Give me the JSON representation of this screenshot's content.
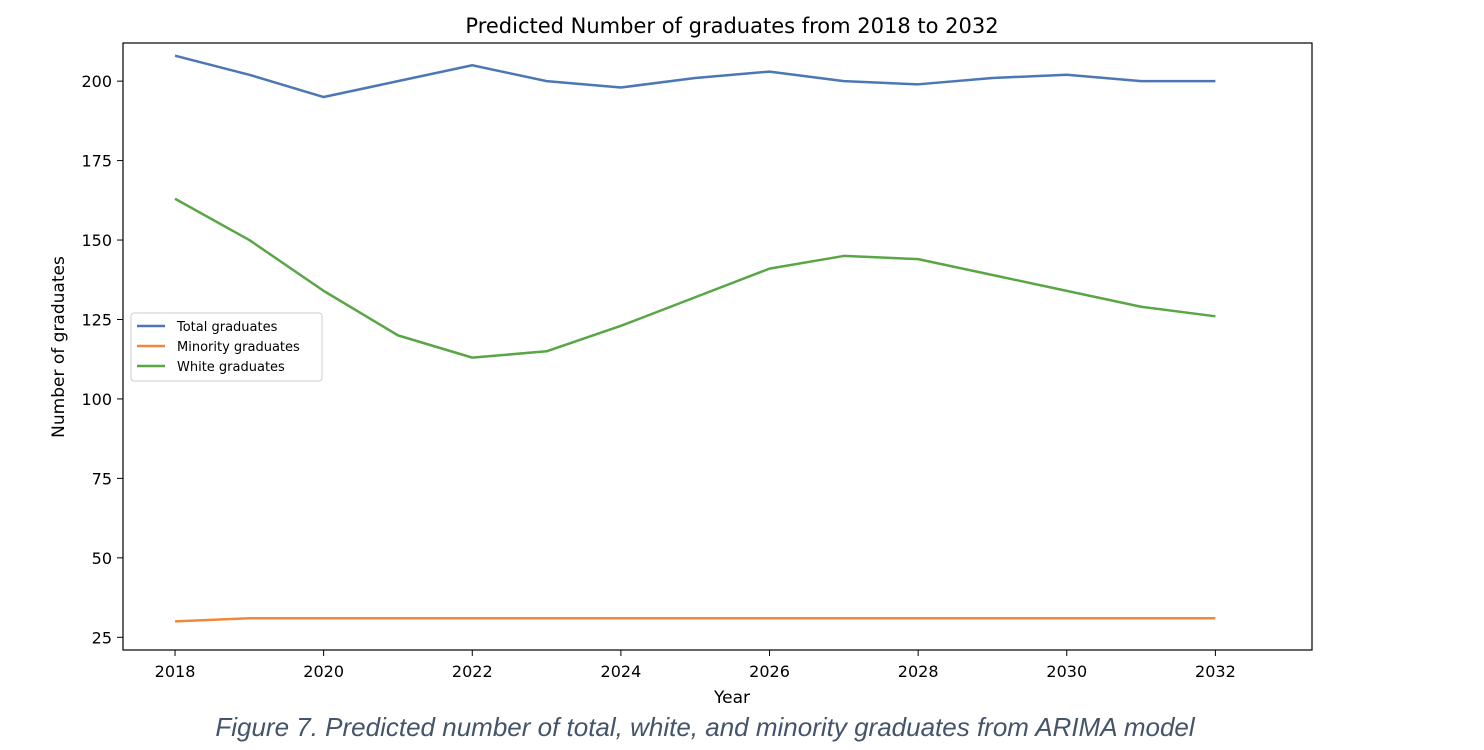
{
  "caption": "Figure 7. Predicted number of total, white, and minority graduates from ARIMA model",
  "chart_data": {
    "type": "line",
    "title": "Predicted Number of graduates from 2018 to 2032",
    "xlabel": "Year",
    "ylabel": "Number of graduates",
    "xlim": [
      2017.3,
      2033.3
    ],
    "ylim": [
      21,
      212
    ],
    "xticks": [
      2018,
      2020,
      2022,
      2024,
      2026,
      2028,
      2030,
      2032
    ],
    "yticks": [
      25,
      50,
      75,
      100,
      125,
      150,
      175,
      200
    ],
    "grid": false,
    "legend_position": "center-left",
    "x": [
      2018,
      2019,
      2020,
      2021,
      2022,
      2023,
      2024,
      2025,
      2026,
      2027,
      2028,
      2029,
      2030,
      2031,
      2032
    ],
    "series": [
      {
        "name": "Total graduates",
        "color": "#4c77b5",
        "values": [
          208,
          202,
          195,
          200,
          205,
          200,
          198,
          201,
          203,
          200,
          199,
          201,
          202,
          200,
          200
        ]
      },
      {
        "name": "Minority graduates",
        "color": "#f0883a",
        "values": [
          30,
          31,
          31,
          31,
          31,
          31,
          31,
          31,
          31,
          31,
          31,
          31,
          31,
          31,
          31
        ]
      },
      {
        "name": "White graduates",
        "color": "#5aa647",
        "values": [
          163,
          150,
          134,
          120,
          113,
          115,
          123,
          132,
          141,
          145,
          144,
          139,
          134,
          129,
          126
        ]
      }
    ]
  }
}
